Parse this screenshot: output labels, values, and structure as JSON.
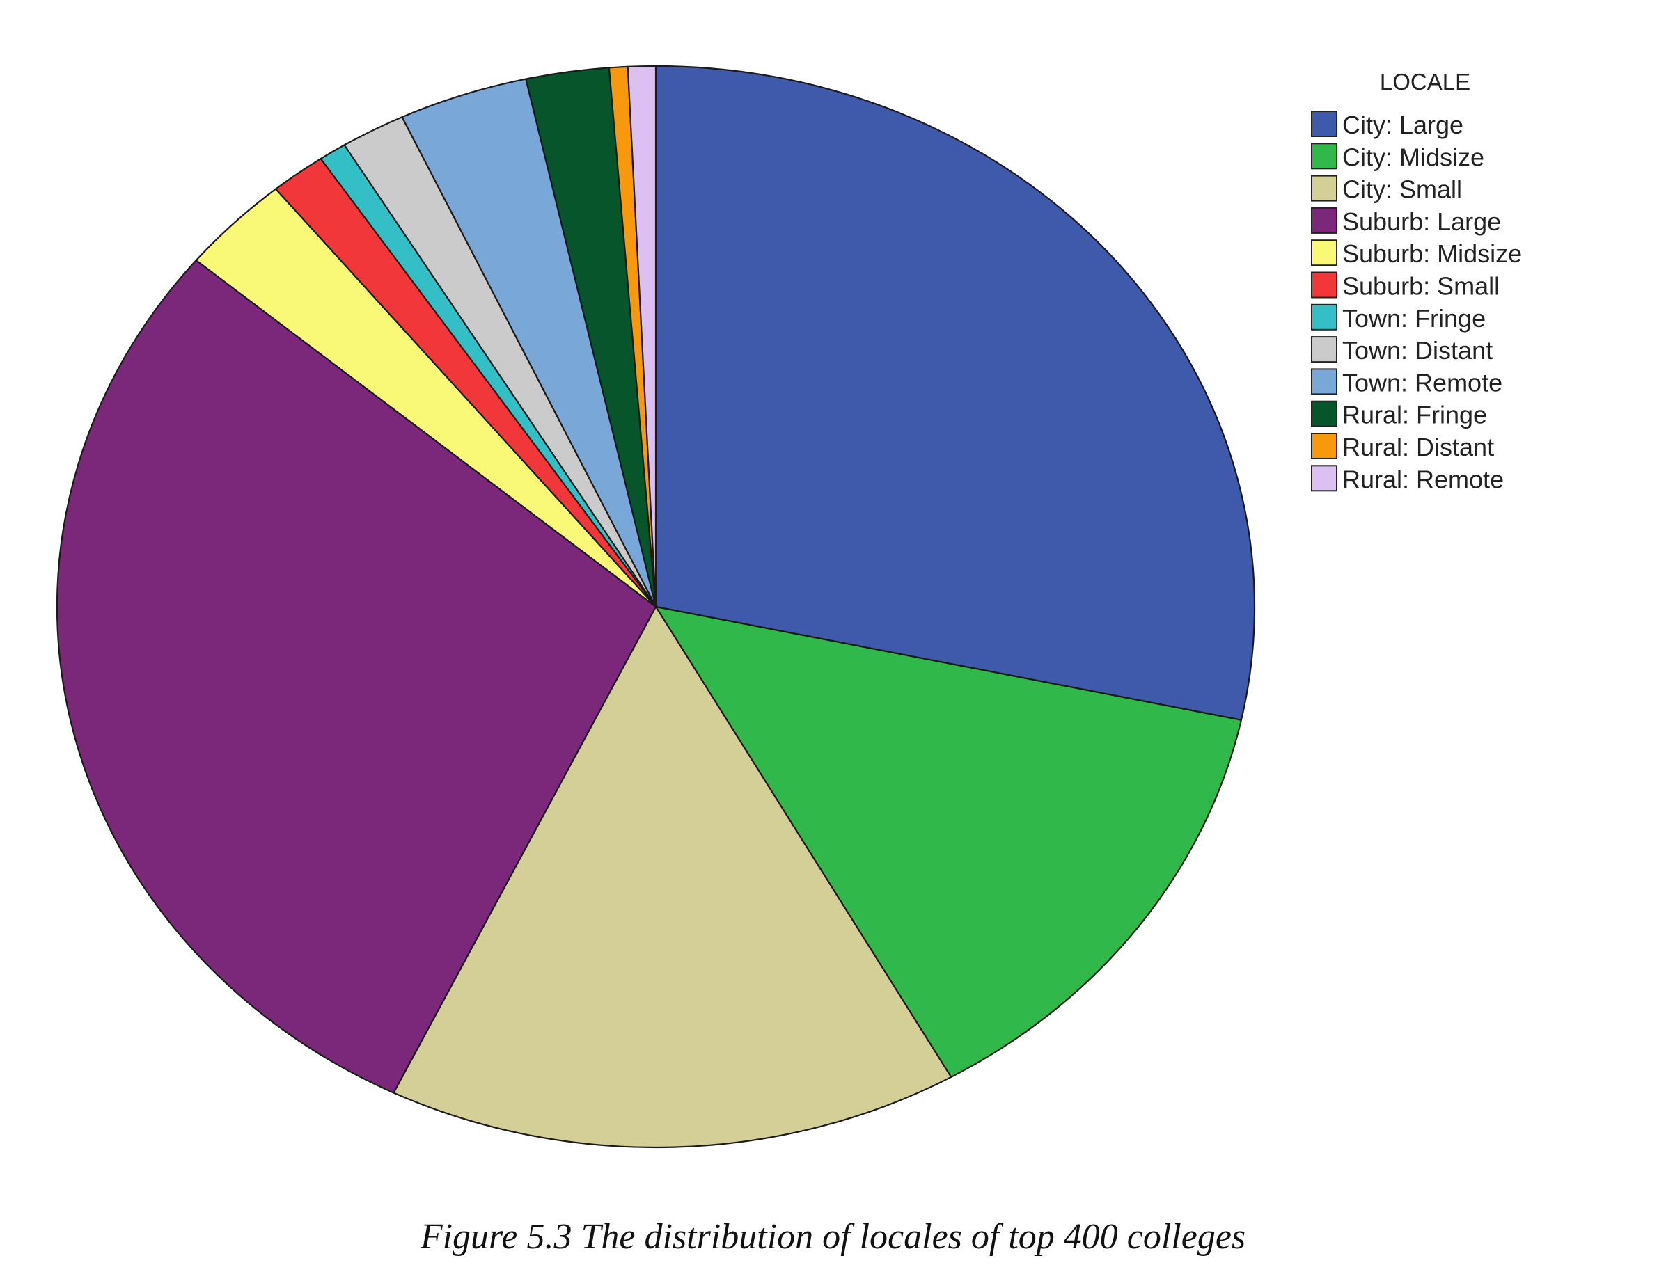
{
  "figure": {
    "caption": "Figure 5.3 The distribution of locales of top 400 colleges"
  },
  "chart_data": {
    "type": "pie",
    "legend_title": "LOCALE",
    "legend_position": "top-right",
    "start_angle": "12 o'clock",
    "direction": "clockwise",
    "unit": "percent",
    "slices": [
      {
        "label": "City: Large",
        "value": 28.5,
        "color": "#3F59AB"
      },
      {
        "label": "City: Midsize",
        "value": 13.5,
        "color": "#31B84A"
      },
      {
        "label": "City: Small",
        "value": 15.5,
        "color": "#D4CF97"
      },
      {
        "label": "Suburb: Large",
        "value": 29.0,
        "color": "#7B287B"
      },
      {
        "label": "Suburb: Midsize",
        "value": 3.0,
        "color": "#FAF977"
      },
      {
        "label": "Suburb: Small",
        "value": 1.5,
        "color": "#F2373A"
      },
      {
        "label": "Town: Fringe",
        "value": 0.75,
        "color": "#33BFC5"
      },
      {
        "label": "Town: Distant",
        "value": 1.75,
        "color": "#CBCBCB"
      },
      {
        "label": "Town: Remote",
        "value": 3.5,
        "color": "#79A7D8"
      },
      {
        "label": "Rural: Fringe",
        "value": 2.25,
        "color": "#06552B"
      },
      {
        "label": "Rural: Distant",
        "value": 0.5,
        "color": "#F8980D"
      },
      {
        "label": "Rural: Remote",
        "value": 0.75,
        "color": "#DCC0F2"
      }
    ]
  }
}
